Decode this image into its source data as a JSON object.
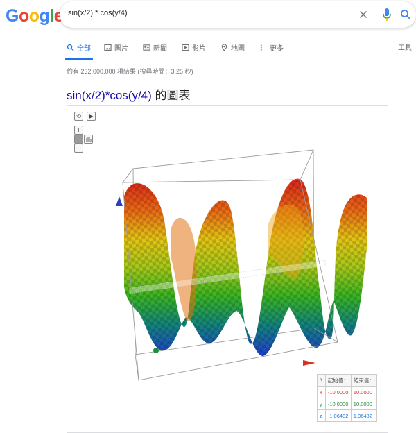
{
  "logo": {
    "letters": [
      "G",
      "o",
      "o",
      "g",
      "l",
      "e"
    ]
  },
  "search": {
    "query": "sin(x/2) * cos(y/4)"
  },
  "tabs": [
    {
      "label": "全部",
      "icon": "search-icon"
    },
    {
      "label": "圖片",
      "icon": "image-icon"
    },
    {
      "label": "新聞",
      "icon": "news-icon"
    },
    {
      "label": "影片",
      "icon": "video-icon"
    },
    {
      "label": "地圖",
      "icon": "map-pin-icon"
    },
    {
      "label": "更多",
      "icon": "more-icon"
    }
  ],
  "tools_label": "工具",
  "stats": "約有 232,000,000 項結果 (搜尋時間：3.25 秒)",
  "result": {
    "title_link": "sin(x/2)*cos(y/4)",
    "title_suffix": "的圖表"
  },
  "graph": {
    "controls": {
      "reload": "⟲",
      "play": "▶",
      "zoom_in": "+",
      "zoom_out": "−"
    },
    "range": {
      "header_axis": "∖",
      "header_start": "起始值：",
      "header_end": "結束值：",
      "rows": [
        {
          "axis": "x",
          "start": "-10.0000",
          "end": "10.0000"
        },
        {
          "axis": "y",
          "start": "-10.0000",
          "end": "10.0000"
        },
        {
          "axis": "z",
          "start": "-1.06482",
          "end": "1.06482"
        }
      ]
    }
  },
  "colors": {
    "google_blue": "#4285f4",
    "google_red": "#ea4335",
    "google_yellow": "#fbbc05",
    "google_green": "#34a853",
    "link": "#1a0dab",
    "accent": "#1a73e8"
  }
}
